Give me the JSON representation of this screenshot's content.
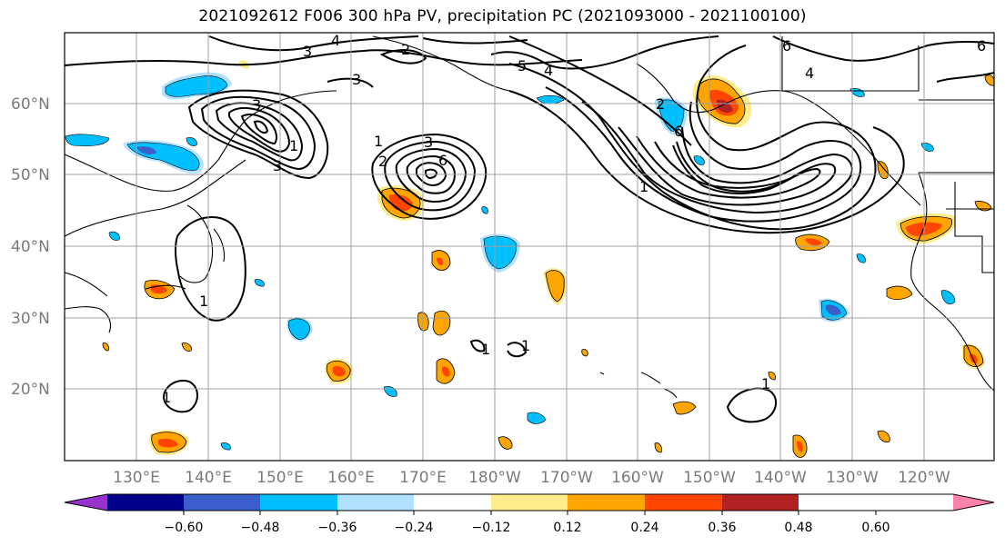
{
  "title": "2021092612 F006 300 hPa PV, precipitation PC (2021093000 - 2021100100)",
  "lat_labels": [
    "60°N",
    "50°N",
    "40°N",
    "30°N",
    "20°N"
  ],
  "lon_labels": [
    "130°E",
    "140°E",
    "150°E",
    "160°E",
    "170°E",
    "180°W",
    "170°W",
    "160°W",
    "150°W",
    "140°W",
    "130°W",
    "120°W"
  ],
  "colorbar": {
    "colors": [
      "#9932cc",
      "#00008b",
      "#3a5fcd",
      "#00bfff",
      "#b0e2ff",
      "#ffffff",
      "#ffec8b",
      "#ffa500",
      "#ff4500",
      "#b22222",
      "#ff82ab"
    ],
    "tick_labels": [
      "−0.60",
      "−0.48",
      "−0.36",
      "−0.24",
      "−0.12",
      "0.12",
      "0.24",
      "0.36",
      "0.48",
      "0.60"
    ],
    "extend": "both"
  },
  "contour_labels": [
    "4",
    "3",
    "2",
    "3",
    "3",
    "3",
    "1",
    "2",
    "3",
    "6",
    "1",
    "2",
    "1",
    "6",
    "4",
    "1",
    "1",
    "1",
    "1",
    "6",
    "1",
    "6",
    "4",
    "5"
  ]
}
